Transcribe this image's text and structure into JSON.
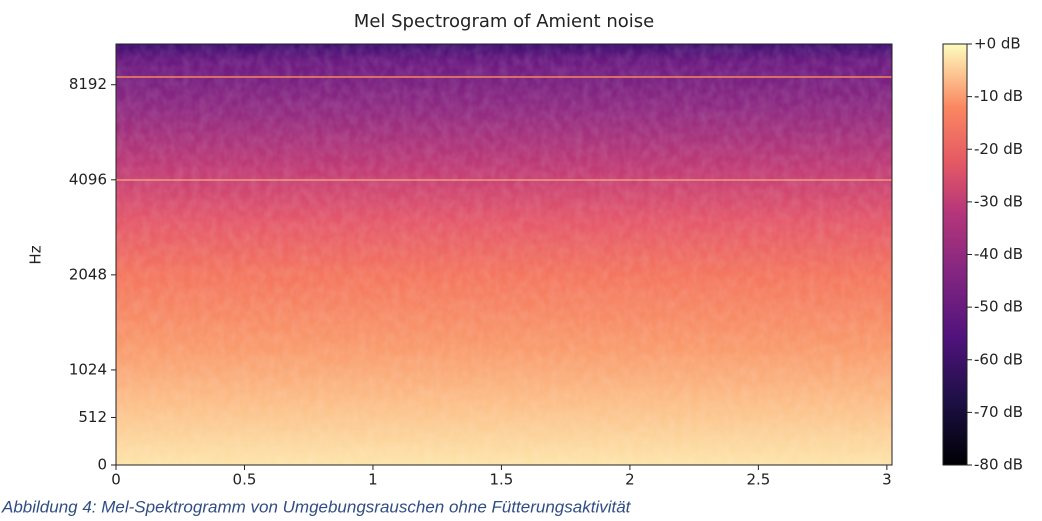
{
  "chart_data": {
    "type": "spectrogram",
    "title": "Mel Spectrogram of Amient noise",
    "y_label": "Hz",
    "xlim": [
      0,
      3.02
    ],
    "xticks": [
      0,
      0.5,
      1,
      1.5,
      2,
      2.5,
      3
    ],
    "ylim": [
      0,
      11025
    ],
    "yscale": "symlog",
    "base": 2,
    "linthresh": 1024,
    "yticks": [
      0,
      512,
      1024,
      2048,
      4096,
      8192
    ],
    "colorbar": {
      "lim": [
        -80,
        0
      ],
      "ticks": [
        {
          "value": 0,
          "label": "+0 dB"
        },
        {
          "value": -10,
          "label": "-10 dB"
        },
        {
          "value": -20,
          "label": "-20 dB"
        },
        {
          "value": -30,
          "label": "-30 dB"
        },
        {
          "value": -40,
          "label": "-40 dB"
        },
        {
          "value": -50,
          "label": "-50 dB"
        },
        {
          "value": -60,
          "label": "-60 dB"
        },
        {
          "value": -70,
          "label": "-70 dB"
        },
        {
          "value": -80,
          "label": "-80 dB"
        }
      ]
    },
    "caption": "Abbildung 4: Mel-Spektrogramm von Umgebungsrauschen ohne Fütterungsaktivität"
  }
}
